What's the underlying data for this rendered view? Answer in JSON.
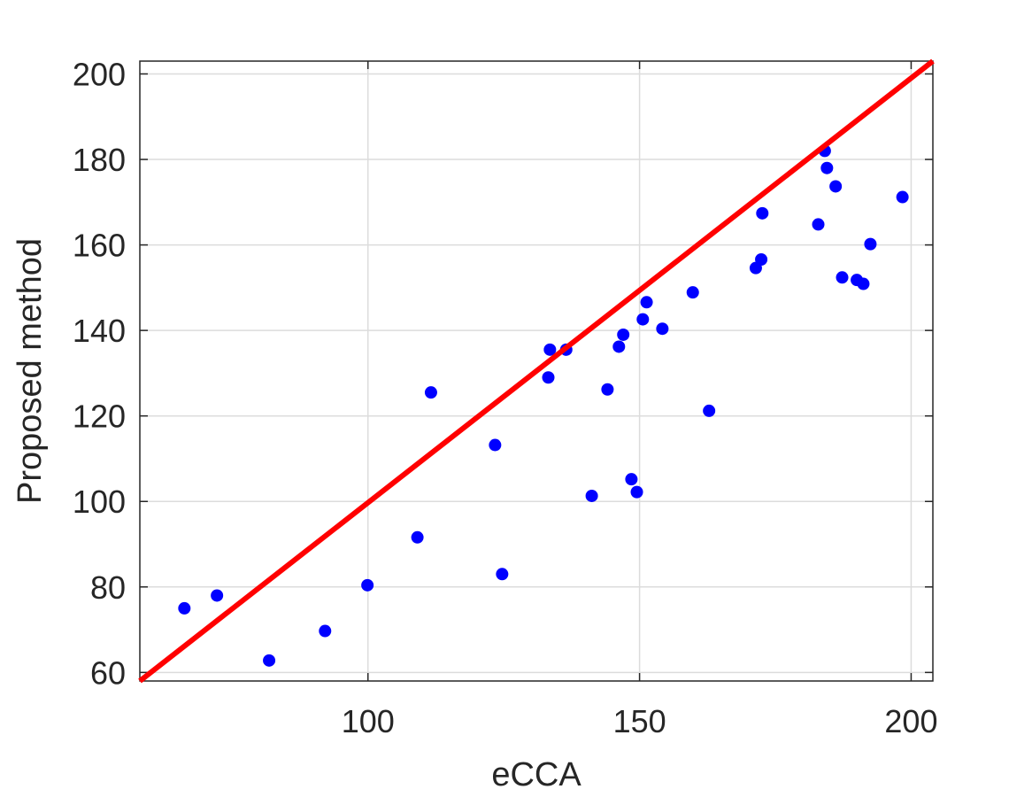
{
  "chart_data": {
    "type": "scatter",
    "title": "",
    "xlabel": "eCCA",
    "ylabel": "Proposed method",
    "xlim": [
      58,
      204
    ],
    "ylim": [
      58,
      203
    ],
    "xticks": [
      100,
      150,
      200
    ],
    "yticks": [
      60,
      80,
      100,
      120,
      140,
      160,
      180,
      200
    ],
    "grid": true,
    "series": [
      {
        "color": "#0000ff",
        "marker": "dot",
        "points": [
          [
            66.2,
            75.0
          ],
          [
            72.2,
            78.0
          ],
          [
            81.8,
            62.8
          ],
          [
            92.1,
            69.7
          ],
          [
            99.9,
            80.4
          ],
          [
            109.1,
            91.6
          ],
          [
            111.6,
            125.5
          ],
          [
            123.4,
            113.2
          ],
          [
            124.7,
            83.0
          ],
          [
            133.2,
            129.0
          ],
          [
            133.5,
            135.5
          ],
          [
            136.5,
            135.5
          ],
          [
            141.2,
            101.3
          ],
          [
            144.1,
            126.2
          ],
          [
            146.2,
            136.2
          ],
          [
            147.0,
            139.0
          ],
          [
            148.5,
            105.2
          ],
          [
            149.5,
            102.2
          ],
          [
            150.6,
            142.6
          ],
          [
            151.3,
            146.6
          ],
          [
            154.2,
            140.4
          ],
          [
            159.8,
            148.9
          ],
          [
            162.8,
            121.2
          ],
          [
            171.4,
            154.6
          ],
          [
            172.4,
            156.6
          ],
          [
            172.6,
            167.4
          ],
          [
            182.9,
            164.8
          ],
          [
            184.1,
            182.0
          ],
          [
            184.5,
            178.0
          ],
          [
            186.1,
            173.7
          ],
          [
            187.3,
            152.4
          ],
          [
            190.0,
            151.8
          ],
          [
            191.2,
            150.9
          ],
          [
            192.5,
            160.2
          ],
          [
            198.4,
            171.2
          ]
        ]
      }
    ],
    "reference_line": {
      "color": "#ff0000",
      "from": [
        58,
        58
      ],
      "to": [
        204,
        203
      ]
    }
  }
}
